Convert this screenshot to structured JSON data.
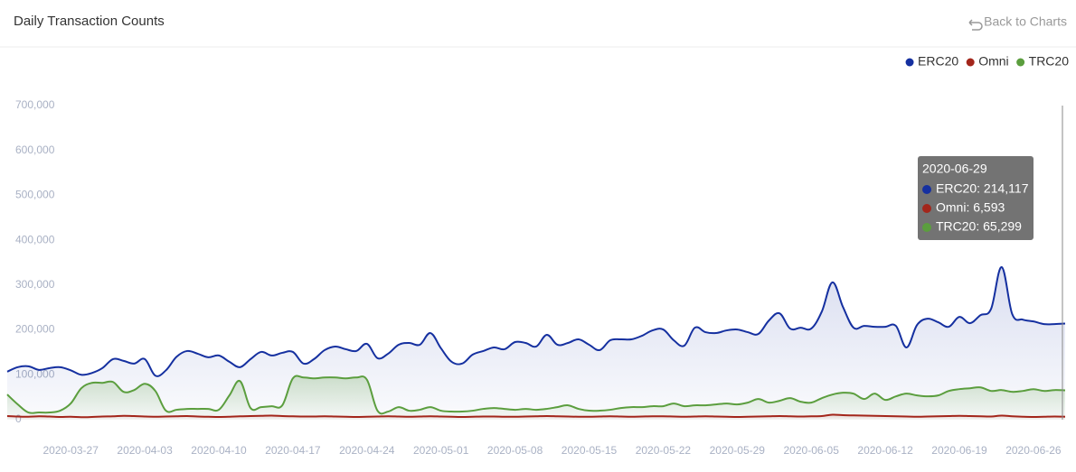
{
  "back_link": "Back to Charts",
  "chart_data": {
    "type": "line",
    "title": "Daily Transaction Counts",
    "x": [
      null,
      null,
      null,
      null,
      null,
      null,
      "2020-03-27",
      null,
      null,
      null,
      null,
      null,
      null,
      "2020-04-03",
      null,
      null,
      null,
      null,
      null,
      null,
      "2020-04-10",
      null,
      null,
      null,
      null,
      null,
      null,
      "2020-04-17",
      null,
      null,
      null,
      null,
      null,
      null,
      "2020-04-24",
      null,
      null,
      null,
      null,
      null,
      null,
      "2020-05-01",
      null,
      null,
      null,
      null,
      null,
      null,
      "2020-05-08",
      null,
      null,
      null,
      null,
      null,
      null,
      "2020-05-15",
      null,
      null,
      null,
      null,
      null,
      null,
      "2020-05-22",
      null,
      null,
      null,
      null,
      null,
      null,
      "2020-05-29",
      null,
      null,
      null,
      null,
      null,
      null,
      "2020-06-05",
      null,
      null,
      null,
      null,
      null,
      null,
      "2020-06-12",
      null,
      null,
      null,
      null,
      null,
      null,
      "2020-06-19",
      null,
      null,
      null,
      null,
      null,
      null,
      "2020-06-26",
      null,
      null,
      null
    ],
    "series": [
      {
        "name": "ERC20",
        "color": "#1530a0",
        "values": [
          107000,
          117000,
          119000,
          111000,
          115000,
          117000,
          110000,
          100000,
          104000,
          115000,
          135000,
          131000,
          125000,
          135000,
          98000,
          110000,
          140000,
          153000,
          147000,
          139000,
          143000,
          129000,
          117000,
          135000,
          151000,
          143000,
          149000,
          151000,
          125000,
          135000,
          155000,
          163000,
          157000,
          153000,
          169000,
          137000,
          147000,
          167000,
          171000,
          167000,
          193000,
          159000,
          129000,
          125000,
          145000,
          153000,
          161000,
          157000,
          173000,
          171000,
          163000,
          189000,
          167000,
          171000,
          179000,
          167000,
          155000,
          177000,
          179000,
          179000,
          187000,
          199000,
          201000,
          177000,
          165000,
          205000,
          195000,
          193000,
          199000,
          201000,
          195000,
          191000,
          221000,
          237000,
          203000,
          205000,
          203000,
          241000,
          306000,
          251000,
          205000,
          209000,
          207000,
          207000,
          209000,
          161000,
          211000,
          225000,
          217000,
          207000,
          229000,
          215000,
          233000,
          247000,
          340000,
          235000,
          223000,
          219000,
          213000,
          213000,
          214117
        ]
      },
      {
        "name": "Omni",
        "color": "#a3261b",
        "values": [
          8000,
          7000,
          6500,
          7500,
          7000,
          6000,
          6500,
          5500,
          6000,
          7000,
          7500,
          8500,
          8000,
          7000,
          6500,
          7000,
          7500,
          8000,
          7000,
          6500,
          6000,
          6500,
          7500,
          8000,
          8500,
          9000,
          8000,
          7500,
          7000,
          7000,
          7500,
          7000,
          6500,
          6000,
          6500,
          7000,
          7500,
          7000,
          6500,
          7000,
          7500,
          7000,
          6500,
          6000,
          6500,
          7000,
          7000,
          6500,
          6500,
          7000,
          7500,
          8000,
          7500,
          7000,
          6500,
          6500,
          7000,
          7500,
          7000,
          6500,
          7000,
          7500,
          7500,
          7000,
          6500,
          7000,
          7500,
          7000,
          6500,
          6000,
          6500,
          7000,
          7500,
          8000,
          7500,
          7000,
          7500,
          8000,
          11000,
          10000,
          9500,
          9000,
          8500,
          8000,
          7500,
          7000,
          6500,
          7000,
          7500,
          8000,
          8500,
          8000,
          7500,
          7000,
          9000,
          7500,
          6500,
          6000,
          6500,
          7000,
          6593
        ]
      },
      {
        "name": "TRC20",
        "color": "#5b9e3e",
        "values": [
          56000,
          34000,
          16000,
          16000,
          16000,
          20000,
          36000,
          70000,
          82000,
          82000,
          84000,
          62000,
          66000,
          80000,
          64000,
          20000,
          22000,
          24000,
          24000,
          24000,
          22000,
          54000,
          86000,
          26000,
          28000,
          30000,
          32000,
          92000,
          94000,
          92000,
          94000,
          94000,
          92000,
          94000,
          89000,
          20000,
          18000,
          28000,
          20000,
          22000,
          28000,
          20000,
          18000,
          18000,
          20000,
          24000,
          26000,
          24000,
          22000,
          24000,
          22000,
          24000,
          28000,
          32000,
          24000,
          20000,
          20000,
          22000,
          26000,
          28000,
          28000,
          30000,
          30000,
          36000,
          30000,
          32000,
          32000,
          34000,
          36000,
          34000,
          38000,
          46000,
          38000,
          42000,
          48000,
          40000,
          38000,
          48000,
          56000,
          60000,
          58000,
          46000,
          58000,
          44000,
          52000,
          58000,
          54000,
          52000,
          54000,
          64000,
          68000,
          70000,
          72000,
          64000,
          66000,
          62000,
          64000,
          68000,
          64000,
          66000,
          65299
        ]
      }
    ],
    "ylim": [
      0,
      700000
    ],
    "yticks": [
      0,
      {
        "value": 100000,
        "label": "100,000"
      },
      {
        "value": 200000,
        "label": "200,000"
      },
      {
        "value": 300000,
        "label": "300,000"
      },
      {
        "value": 400000,
        "label": "400,000"
      },
      {
        "value": 500000,
        "label": "500,000"
      },
      {
        "value": 600000,
        "label": "600,000"
      },
      {
        "value": 700000,
        "label": "700,000"
      }
    ],
    "grid": false,
    "legend": "top-right",
    "tooltip": {
      "date": "2020-06-29",
      "items": [
        {
          "value": 214117,
          "label": "ERC20: 214,117"
        },
        {
          "value": 6593,
          "label": "Omni: 6,593"
        },
        {
          "value": 65299,
          "label": "TRC20: 65,299"
        }
      ]
    }
  }
}
